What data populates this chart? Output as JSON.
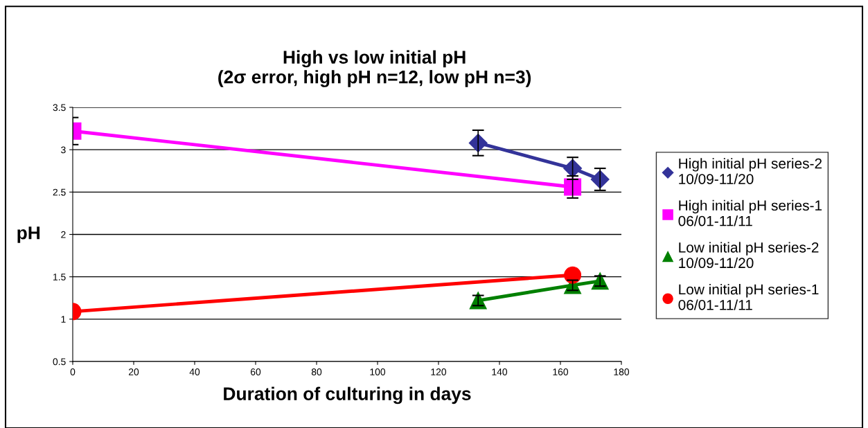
{
  "chart_data": {
    "type": "line",
    "title": "High vs low initial pH\n(2σ error, high pH n=12, low pH n=3)",
    "xlabel": "Duration of culturing in days",
    "ylabel": "pH",
    "xlim": [
      0,
      180
    ],
    "xticks": [
      0,
      20,
      40,
      60,
      80,
      100,
      120,
      140,
      160,
      180
    ],
    "ylim": [
      0.5,
      3.5
    ],
    "yticks": [
      0.5,
      1,
      1.5,
      2,
      2.5,
      3,
      3.5
    ],
    "grid": "y",
    "legend": "right",
    "series": [
      {
        "name": "High initial pH series-2\n10/09-11/20",
        "color": "#333399",
        "marker": "diamond",
        "x": [
          133,
          164,
          173
        ],
        "values": [
          3.08,
          2.78,
          2.65
        ],
        "errors": [
          0.15,
          0.13,
          0.13
        ]
      },
      {
        "name": "High initial pH series-1\n06/01-11/11",
        "color": "#ff00ff",
        "marker": "square",
        "x": [
          0,
          164
        ],
        "values": [
          3.22,
          2.56
        ],
        "errors": [
          0.16,
          0.13
        ]
      },
      {
        "name": "Low initial pH series-2\n10/09-11/20",
        "color": "#008000",
        "marker": "triangle",
        "x": [
          133,
          164,
          173
        ],
        "values": [
          1.22,
          1.4,
          1.45
        ],
        "errors": [
          0.06,
          0.06,
          0.06
        ]
      },
      {
        "name": "Low initial pH series-1\n06/01-11/11",
        "color": "#ff0000",
        "marker": "circle",
        "x": [
          0,
          164
        ],
        "values": [
          1.09,
          1.52
        ]
      }
    ]
  }
}
